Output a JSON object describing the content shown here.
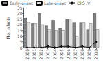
{
  "chart_data": {
    "type": "bar",
    "categories": [
      "2000",
      "2001",
      "2002",
      "2003",
      "2004",
      "2005",
      "2006",
      "2007",
      "2008",
      "2009",
      "2010"
    ],
    "series": [
      {
        "name": "Early-onset",
        "type": "bar",
        "color": "#808080",
        "values": [
          26,
          21,
          30,
          19,
          24,
          17,
          25,
          22,
          22,
          16,
          30
        ]
      },
      {
        "name": "Late-onset",
        "type": "bar",
        "color": "#e0e0e0",
        "values": [
          22,
          21,
          20,
          16,
          15,
          15,
          25,
          10,
          22,
          21,
          16
        ]
      },
      {
        "name": "CPS IV",
        "type": "line",
        "color": "#111111",
        "marker": "circle",
        "values": [
          0,
          0,
          0,
          1,
          0,
          1,
          1,
          0,
          1,
          0,
          5
        ]
      }
    ],
    "ylabel": "No. infants",
    "ylim": [
      0,
      35
    ],
    "yticks": [
      0,
      5,
      10,
      15,
      20,
      25,
      30,
      35
    ],
    "grid": false,
    "legend": "upper left"
  }
}
